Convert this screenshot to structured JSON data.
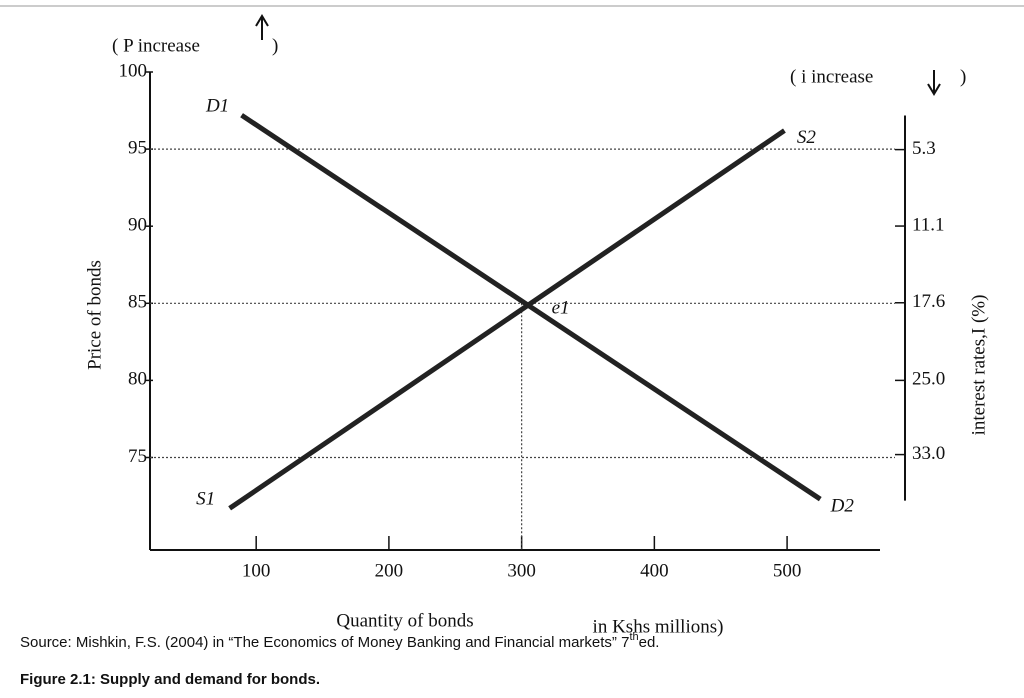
{
  "chart_data": {
    "type": "line",
    "left_note": "( P increase",
    "left_note_close": ")",
    "right_note": "( i increase",
    "right_note_close": ")",
    "ylabel": "Price of bonds",
    "y2label": "interest rates,I (%)",
    "xlabel": "Quantity of bonds",
    "xlabel_unit": "in Kshs millions)",
    "xlim": [
      20,
      570
    ],
    "xticks": [
      100,
      200,
      300,
      400,
      500
    ],
    "ylim": [
      69,
      100
    ],
    "yticks": [
      75,
      80,
      85,
      90,
      95,
      100
    ],
    "y2lim": [
      2.9,
      38.5
    ],
    "y2ticks": [
      5.3,
      11.1,
      17.6,
      {
        "value": 25.0,
        "label": "25.0"
      },
      {
        "value": 33.0,
        "label": "33.0"
      }
    ],
    "reference_lines": [
      95,
      85,
      75
    ],
    "equilibrium": {
      "label": "e1",
      "x": 300,
      "y": 85
    },
    "series": [
      {
        "name": "D",
        "color": "#222",
        "labels": [
          "D1",
          "D2"
        ],
        "x": [
          89,
          525
        ],
        "values": [
          97.2,
          72.3
        ]
      },
      {
        "name": "S",
        "color": "#222",
        "labels": [
          "S1",
          "S2"
        ],
        "x": [
          80,
          498
        ],
        "values": [
          71.7,
          96.2
        ]
      }
    ]
  },
  "source": "Source: Mishkin, F.S. (2004) in “The Economics of Money Banking and Financial markets” 7",
  "source_sup": "th",
  "source_end": "ed.",
  "caption": "Figure 2.1: Supply and demand for bonds."
}
